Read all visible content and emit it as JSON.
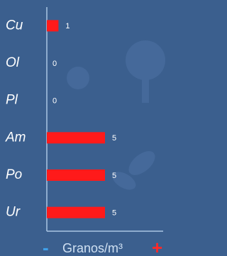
{
  "chart_data": {
    "type": "hbar",
    "categories": [
      "Cu",
      "Ol",
      "Pl",
      "Am",
      "Po",
      "Ur"
    ],
    "values": [
      1,
      0,
      0,
      5,
      5,
      5
    ],
    "color": "#ff1a1a",
    "x_label": "Granos/m³"
  },
  "controls": {
    "zoom_out": "-",
    "zoom_in": "+"
  }
}
